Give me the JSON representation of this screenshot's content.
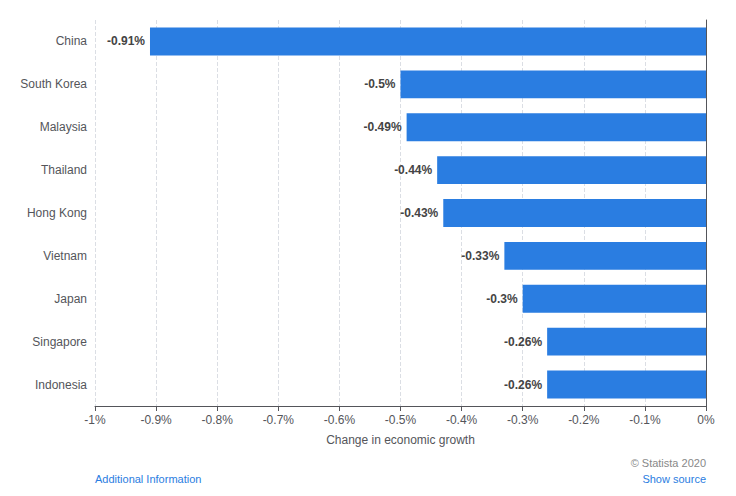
{
  "chart_data": {
    "type": "bar",
    "orientation": "horizontal",
    "categories": [
      "Indonesia",
      "Singapore",
      "Japan",
      "Vietnam",
      "Hong Kong",
      "Thailand",
      "Malaysia",
      "South Korea",
      "China"
    ],
    "values": [
      -0.26,
      -0.26,
      -0.3,
      -0.33,
      -0.43,
      -0.44,
      -0.49,
      -0.5,
      -0.91
    ],
    "value_labels": [
      "-0.26%",
      "-0.26%",
      "-0.3%",
      "-0.33%",
      "-0.43%",
      "-0.44%",
      "-0.49%",
      "-0.5%",
      "-0.91%"
    ],
    "data_labels": true,
    "color": "#2a7de1",
    "xlabel": "Change in economic growth",
    "xlim": [
      -1.0,
      0.0
    ],
    "xticks": [
      {
        "value": -1.0,
        "label": "-1%"
      },
      {
        "value": -0.9,
        "label": "-0.9%"
      },
      {
        "value": -0.8,
        "label": "-0.8%"
      },
      {
        "value": -0.7,
        "label": "-0.7%"
      },
      {
        "value": -0.6,
        "label": "-0.6%"
      },
      {
        "value": -0.5,
        "label": "-0.5%"
      },
      {
        "value": -0.4,
        "label": "-0.4%"
      },
      {
        "value": -0.3,
        "label": "-0.3%"
      },
      {
        "value": -0.2,
        "label": "-0.2%"
      },
      {
        "value": -0.1,
        "label": "-0.1%"
      },
      {
        "value": 0.0,
        "label": "0%"
      }
    ],
    "grid": true,
    "annotations": [
      "Additional Information",
      "© Statista 2020",
      "Show source"
    ]
  }
}
